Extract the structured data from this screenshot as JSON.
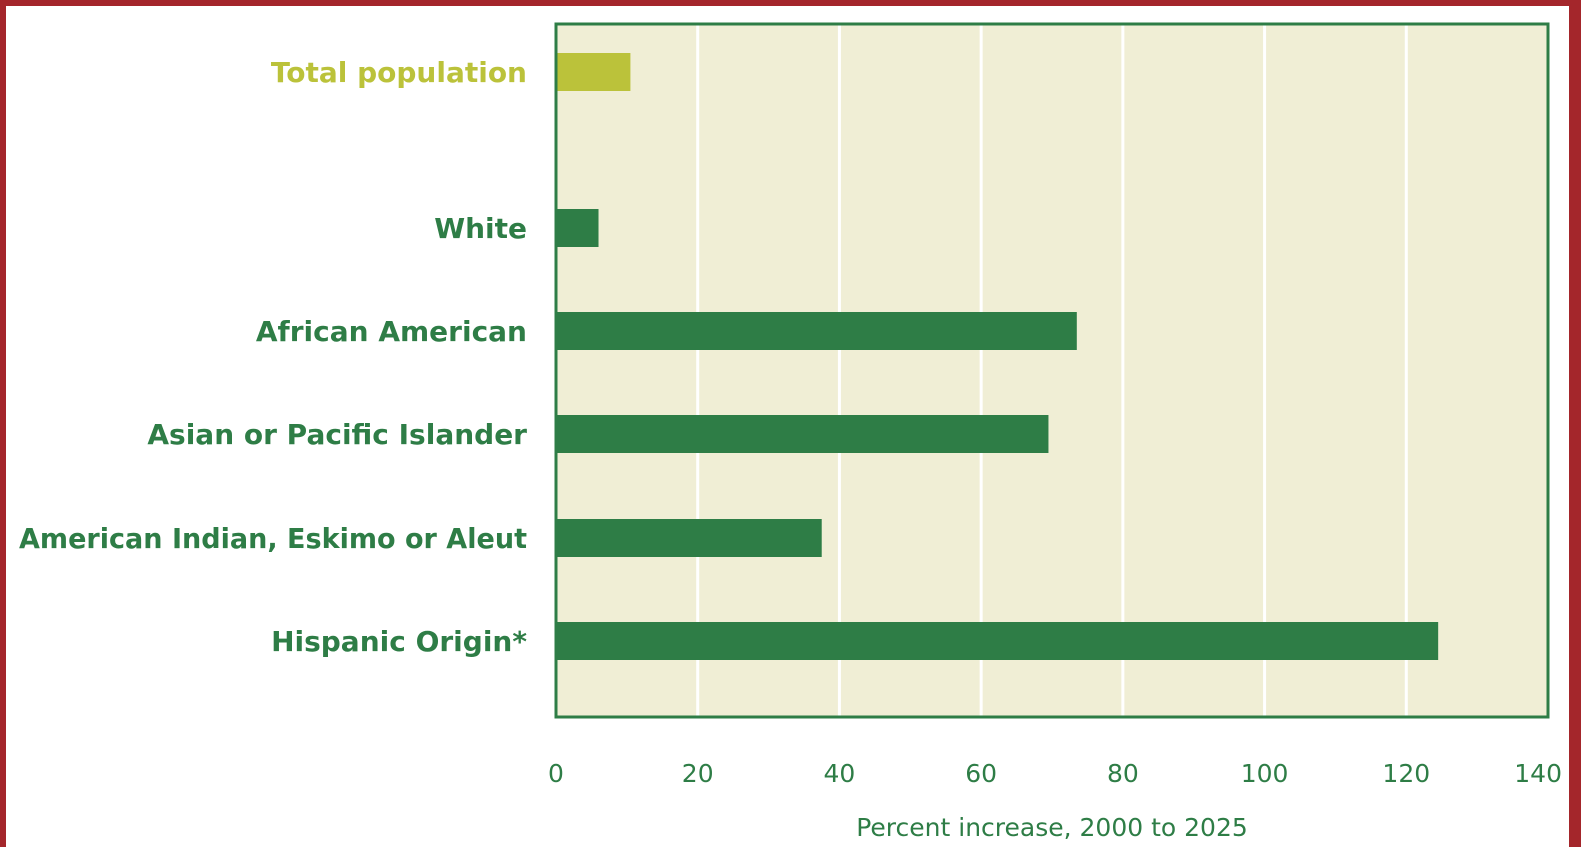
{
  "chart_data": {
    "type": "bar",
    "orientation": "horizontal",
    "categories": [
      "Total population",
      "White",
      "African American",
      "Asian or Pacific Islander",
      "American Indian, Eskimo or Aleut",
      "Hispanic Origin*"
    ],
    "values": [
      10.5,
      6,
      73.5,
      69.5,
      37.5,
      124.5
    ],
    "xlabel": "Percent increase, 2000 to 2025",
    "xlim": [
      0,
      140
    ],
    "xticks": [
      "0",
      "20",
      "40",
      "60",
      "80",
      "100",
      "120",
      "140"
    ],
    "grid": "vertical",
    "colors": {
      "plot_background": "#f0eed5",
      "gridline": "#ffffff",
      "bar": "#2e7d46",
      "highlight_bar": "#bbc23a",
      "text": "#2e7d46",
      "highlight_text": "#bbc23a",
      "border": "#a4262b"
    },
    "highlight_index": 0
  }
}
